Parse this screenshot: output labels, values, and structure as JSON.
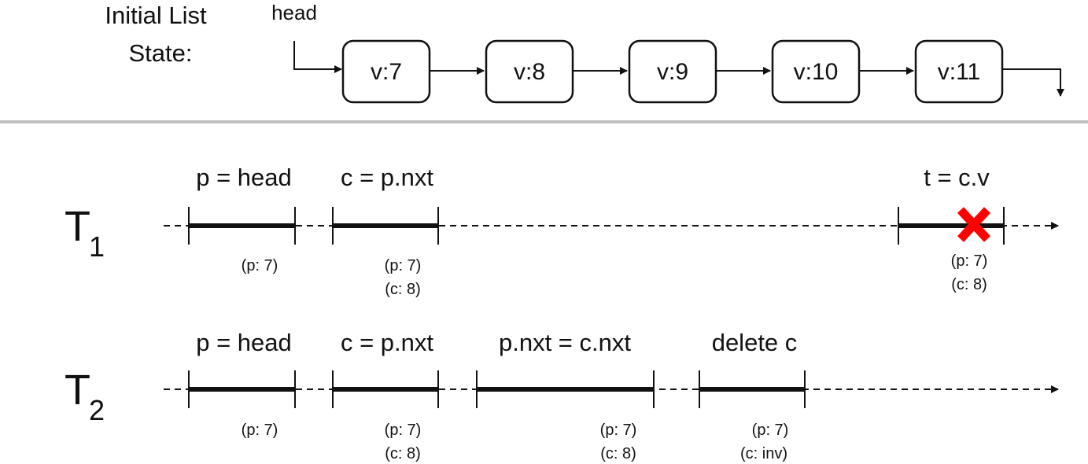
{
  "initial_state": {
    "label_line1": "Initial List",
    "label_line2": "State:",
    "head_label": "head",
    "nodes": [
      "v:7",
      "v:8",
      "v:9",
      "v:10",
      "v:11"
    ]
  },
  "threads": [
    {
      "name": "T",
      "subscript": "1",
      "ops": [
        {
          "label": "p = head",
          "notes": [
            "(p: 7)"
          ]
        },
        {
          "label": "c = p.nxt",
          "notes": [
            "(p: 7)",
            "(c: 8)"
          ]
        },
        {
          "label": "t = c.v",
          "notes": [
            "(p: 7)",
            "(c: 8)"
          ],
          "failed": true
        }
      ]
    },
    {
      "name": "T",
      "subscript": "2",
      "ops": [
        {
          "label": "p = head",
          "notes": [
            "(p: 7)"
          ]
        },
        {
          "label": "c = p.nxt",
          "notes": [
            "(p: 7)",
            "(c: 8)"
          ]
        },
        {
          "label": "p.nxt = c.nxt",
          "notes": [
            "(p: 7)",
            "(c: 8)"
          ]
        },
        {
          "label": "delete c",
          "notes": [
            "(p: 7)",
            "(c: inv)"
          ]
        }
      ]
    }
  ],
  "colors": {
    "line": "#111111",
    "divider": "#bfbfbf",
    "fail_mark": "#ff0000"
  }
}
